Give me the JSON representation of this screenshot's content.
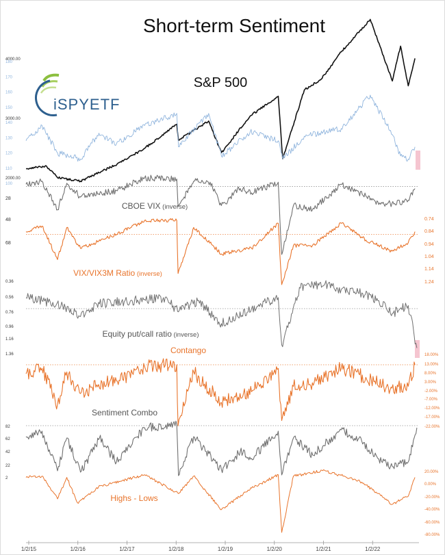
{
  "colors": {
    "sp500": "#111111",
    "spsub": "#8fb4dd",
    "gray": "#6f6f6f",
    "orange": "#e8732a",
    "ref": "#b0b0b0",
    "pink": "#f2b6c4",
    "logo_green": "#8cbf3f",
    "logo_blue": "#2d5f8e"
  },
  "logo": {
    "text": "iSPYETF"
  },
  "chart_data": {
    "type": "line",
    "title": "Short-term Sentiment",
    "x_labels": [
      "1/2/15",
      "1/2/16",
      "1/2/17",
      "1/2/18",
      "1/2/19",
      "1/2/20",
      "1/2/21",
      "1/2/22"
    ],
    "panels": [
      {
        "id": "sp500",
        "label": "S&P 500",
        "color_key": "sp500",
        "ticks_left": [
          "4000.00",
          "3000.00",
          "2000.00"
        ],
        "ticks_right": [],
        "x": [
          "2015-01-02",
          "2015-06-01",
          "2015-08-24",
          "2016-02-11",
          "2016-11-08",
          "2017-06-01",
          "2018-01-26",
          "2018-02-08",
          "2018-09-20",
          "2018-12-24",
          "2019-07-26",
          "2020-02-19",
          "2020-03-23",
          "2020-08-31",
          "2021-01-04",
          "2021-06-01",
          "2022-01-03",
          "2022-06-16",
          "2022-08-16",
          "2022-10-12",
          "2022-12-01"
        ],
        "values": [
          2058,
          2110,
          1893,
          1829,
          2139,
          2430,
          2873,
          2581,
          2931,
          2351,
          3025,
          3386,
          2237,
          3500,
          3700,
          4200,
          4796,
          3666,
          4305,
          3577,
          4080
        ],
        "reference": null
      },
      {
        "id": "sp500-sub",
        "label": "",
        "color_key": "spsub",
        "ticks_left": [
          "180",
          "170",
          "160",
          "150",
          "140",
          "130",
          "120",
          "110",
          "100"
        ],
        "ticks_right": [],
        "x": [
          "2015-01-02",
          "2015-05-01",
          "2015-08-24",
          "2016-02-11",
          "2016-06-27",
          "2016-11-04",
          "2017-06-01",
          "2018-01-26",
          "2018-02-08",
          "2018-09-20",
          "2018-12-24",
          "2019-07-26",
          "2020-02-19",
          "2020-03-23",
          "2020-08-31",
          "2021-06-01",
          "2022-01-03",
          "2022-06-16",
          "2022-08-16",
          "2022-10-12",
          "2022-12-01"
        ],
        "values": [
          128,
          138,
          120,
          116,
          133,
          126,
          138,
          146,
          124,
          146,
          118,
          134,
          128,
          116,
          131,
          136,
          158,
          132,
          118,
          116,
          124
        ],
        "reference": null
      },
      {
        "id": "vix",
        "label": "CBOE VIX",
        "label_suffix": "(inverse)",
        "color_key": "gray",
        "ticks_left": [
          "28",
          "48",
          "68"
        ],
        "ticks_right": [],
        "x": [
          "2015-01-02",
          "2015-05-01",
          "2015-08-24",
          "2015-11-01",
          "2016-02-11",
          "2016-06-24",
          "2016-11-04",
          "2017-06-01",
          "2018-01-26",
          "2018-02-05",
          "2018-06-01",
          "2018-10-01",
          "2018-12-24",
          "2019-05-13",
          "2019-08-05",
          "2020-02-19",
          "2020-03-16",
          "2020-06-11",
          "2020-10-30",
          "2021-06-01",
          "2021-12-01",
          "2022-03-07",
          "2022-06-13",
          "2022-10-12",
          "2022-12-01"
        ],
        "values": [
          16,
          13,
          40,
          15,
          28,
          25,
          22,
          10,
          11,
          37,
          13,
          14,
          36,
          20,
          24,
          14,
          82,
          36,
          40,
          16,
          27,
          35,
          34,
          31,
          20
        ],
        "reference": 18
      },
      {
        "id": "vix-ratio",
        "label": "VIX/VIX3M Ratio",
        "label_suffix": "(inverse)",
        "color_key": "orange",
        "ticks_left": [],
        "ticks_right": [
          "0.74",
          "0.84",
          "0.94",
          "1.04",
          "1.14",
          "1.24"
        ],
        "x": [
          "2015-01-02",
          "2015-05-01",
          "2015-08-24",
          "2015-11-01",
          "2016-02-11",
          "2016-06-24",
          "2016-11-04",
          "2017-06-01",
          "2018-01-26",
          "2018-02-05",
          "2018-06-01",
          "2018-12-24",
          "2019-08-05",
          "2020-02-19",
          "2020-03-16",
          "2020-06-11",
          "2020-10-30",
          "2021-06-01",
          "2021-12-01",
          "2022-06-13",
          "2022-10-12",
          "2022-12-01"
        ],
        "values": [
          0.88,
          0.84,
          1.08,
          0.85,
          1.0,
          0.95,
          0.9,
          0.8,
          0.8,
          1.18,
          0.85,
          1.04,
          1.0,
          0.82,
          1.26,
          0.98,
          0.98,
          0.82,
          0.94,
          1.02,
          0.96,
          0.88
        ],
        "reference": 0.9
      },
      {
        "id": "putcall",
        "label": "Equity put/call ratio",
        "label_suffix": "(inverse)",
        "color_key": "gray",
        "ticks_left": [
          "0.36",
          "0.56",
          "0.76",
          "0.96",
          "1.16",
          "1.36"
        ],
        "ticks_right": [],
        "x": [
          "2015-01-02",
          "2015-05-01",
          "2015-10-01",
          "2016-02-11",
          "2016-07-01",
          "2017-03-01",
          "2017-11-01",
          "2018-02-08",
          "2018-07-01",
          "2018-12-24",
          "2019-08-05",
          "2020-02-19",
          "2020-03-16",
          "2020-08-01",
          "2021-02-01",
          "2021-06-01",
          "2021-11-01",
          "2022-03-01",
          "2022-06-16",
          "2022-10-12",
          "2022-12-15"
        ],
        "values": [
          0.62,
          0.66,
          0.72,
          0.86,
          0.7,
          0.66,
          0.62,
          0.8,
          0.66,
          0.95,
          0.76,
          0.62,
          1.22,
          0.5,
          0.44,
          0.52,
          0.56,
          0.66,
          0.82,
          0.72,
          1.26
        ],
        "reference": 0.76
      },
      {
        "id": "contango",
        "label": "Contango",
        "color_key": "orange",
        "ticks_left": [],
        "ticks_right": [
          "18.00%",
          "13.00%",
          "8.00%",
          "3.00%",
          "-2.00%",
          "-7.00%",
          "-12.00%",
          "-17.00%",
          "-22.00%"
        ],
        "x": [
          "2015-01-02",
          "2015-05-01",
          "2015-08-24",
          "2015-11-01",
          "2016-02-11",
          "2016-06-24",
          "2016-11-04",
          "2017-06-01",
          "2018-01-26",
          "2018-02-05",
          "2018-06-01",
          "2018-12-24",
          "2019-08-05",
          "2020-02-19",
          "2020-03-16",
          "2020-06-11",
          "2020-10-30",
          "2021-06-01",
          "2021-12-01",
          "2022-06-13",
          "2022-10-12",
          "2022-12-01"
        ],
        "values": [
          7,
          10,
          -10,
          8,
          -4,
          1,
          3,
          11,
          12,
          -22,
          8,
          -9,
          -3,
          10,
          -19,
          0,
          2,
          10,
          5,
          -1,
          0,
          12
        ],
        "reference": 12
      },
      {
        "id": "combo",
        "label": "Sentiment Combo",
        "color_key": "gray",
        "ticks_left": [
          "82",
          "62",
          "42",
          "22",
          "2"
        ],
        "ticks_right": [],
        "x": [
          "2015-01-02",
          "2015-05-01",
          "2015-08-24",
          "2015-11-01",
          "2016-02-11",
          "2016-07-01",
          "2016-11-04",
          "2017-06-01",
          "2018-01-26",
          "2018-02-08",
          "2018-06-01",
          "2018-12-24",
          "2019-05-13",
          "2019-08-05",
          "2020-02-19",
          "2020-03-16",
          "2020-06-11",
          "2020-11-01",
          "2021-06-01",
          "2021-11-01",
          "2022-03-01",
          "2022-06-16",
          "2022-10-12",
          "2022-12-15"
        ],
        "values": [
          62,
          70,
          12,
          60,
          10,
          60,
          25,
          75,
          80,
          5,
          62,
          14,
          40,
          30,
          70,
          6,
          60,
          35,
          72,
          55,
          30,
          18,
          25,
          75
        ],
        "reference": 78
      },
      {
        "id": "highs-lows",
        "label": "Highs - Lows",
        "color_key": "orange",
        "ticks_left": [],
        "ticks_right": [
          "20.00%",
          "0.00%",
          "-20.00%",
          "-40.00%",
          "-60.00%",
          "-80.00%"
        ],
        "x": [
          "2015-01-02",
          "2015-05-01",
          "2015-08-24",
          "2015-11-01",
          "2016-01-20",
          "2016-06-24",
          "2017-06-01",
          "2018-02-08",
          "2018-06-01",
          "2018-12-24",
          "2019-08-05",
          "2020-02-19",
          "2020-03-16",
          "2020-06-11",
          "2021-01-15",
          "2021-06-01",
          "2021-11-01",
          "2022-03-01",
          "2022-06-16",
          "2022-10-12",
          "2022-12-01"
        ],
        "values": [
          2,
          4,
          -30,
          2,
          -36,
          -12,
          6,
          -22,
          4,
          -46,
          -14,
          6,
          -80,
          4,
          12,
          5,
          -5,
          -22,
          -38,
          -26,
          2
        ],
        "reference": null
      }
    ]
  }
}
